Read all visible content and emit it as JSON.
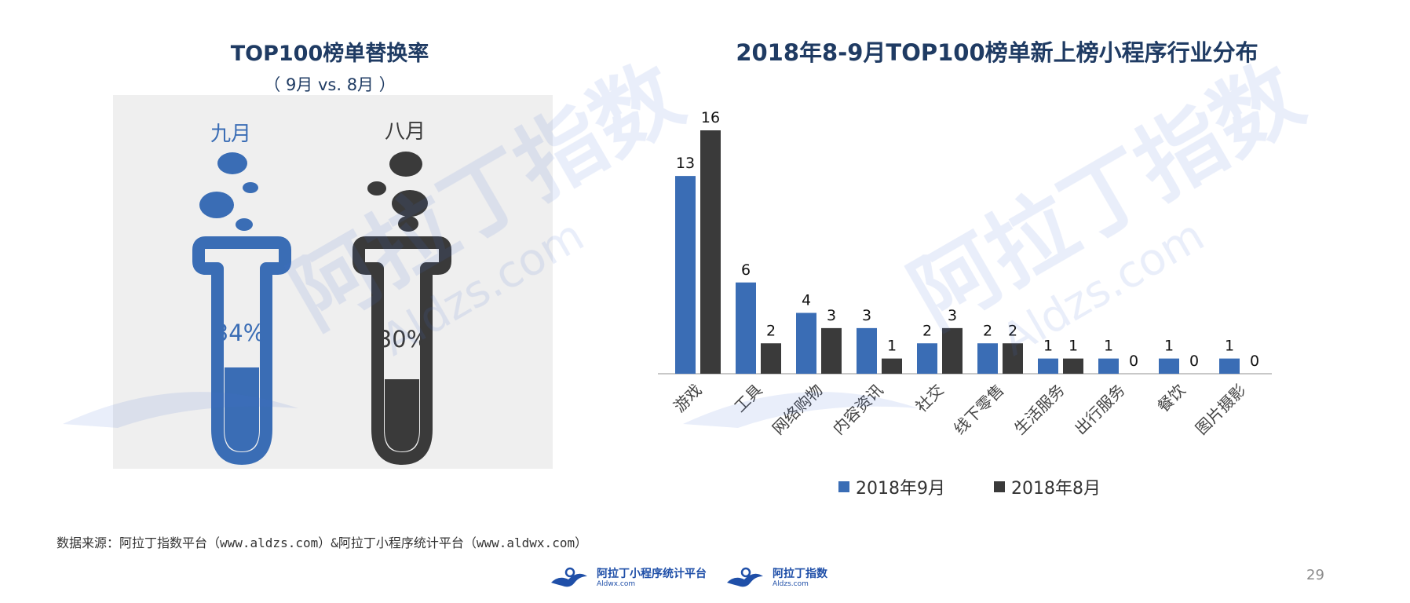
{
  "left": {
    "title": "TOP100榜单替换率",
    "subtitle": "（ 9月 vs. 8月 ）",
    "tubes": [
      {
        "label": "九月",
        "value_text": "34%",
        "fill": 0.34,
        "color": "#3a6db5"
      },
      {
        "label": "八月",
        "value_text": "30%",
        "fill": 0.3,
        "color": "#3a3a3a"
      }
    ]
  },
  "right": {
    "title": "2018年8-9月TOP100榜单新上榜小程序行业分布"
  },
  "chart_data": {
    "type": "bar",
    "categories": [
      "游戏",
      "工具",
      "网络购物",
      "内容资讯",
      "社交",
      "线下零售",
      "生活服务",
      "出行服务",
      "餐饮",
      "图片摄影"
    ],
    "series": [
      {
        "name": "2018年9月",
        "values": [
          13,
          6,
          4,
          3,
          2,
          2,
          1,
          1,
          1,
          1
        ],
        "color": "#3a6db5"
      },
      {
        "name": "2018年8月",
        "values": [
          16,
          2,
          3,
          1,
          3,
          2,
          1,
          0,
          0,
          0
        ],
        "color": "#3a3a3a"
      }
    ],
    "legend_position": "bottom",
    "grid": false,
    "ylim": [
      0,
      16
    ]
  },
  "source_text": "数据来源：阿拉丁指数平台（www.aldzs.com）&阿拉丁小程序统计平台（www.aldwx.com）",
  "footer": {
    "logo1": {
      "name": "阿拉丁小程序统计平台",
      "url": "Aldwx.com"
    },
    "logo2": {
      "name": "阿拉丁指数",
      "url": "Aldzs.com"
    }
  },
  "page_number": "29",
  "watermark": {
    "brand": "阿拉丁指数",
    "url": "Aldzs.com"
  }
}
